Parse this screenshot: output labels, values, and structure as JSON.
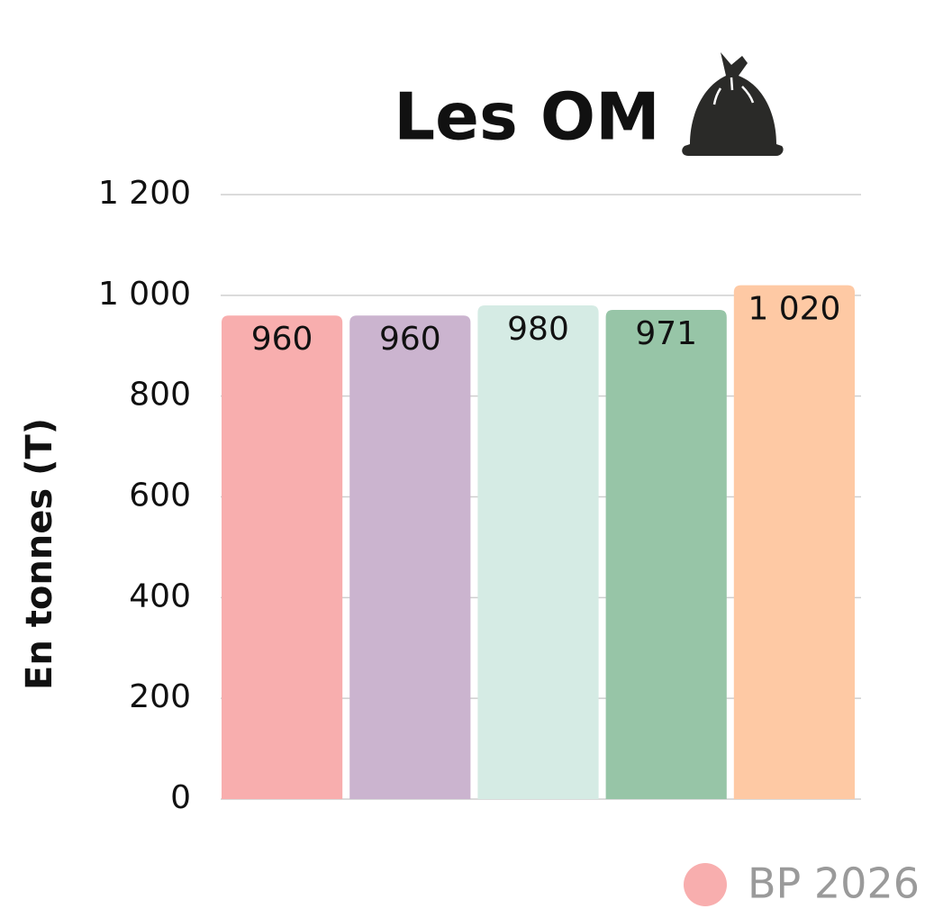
{
  "chart_data": {
    "type": "bar",
    "title": "Les OM",
    "y_label": "En tonnes (T)",
    "categories": [
      null,
      null,
      null,
      null,
      null
    ],
    "values": [
      960,
      960,
      980,
      971,
      1020
    ],
    "value_labels": [
      "960",
      "960",
      "980",
      "971",
      "1 020"
    ],
    "colors": [
      "#f8aeae",
      "#cbb4cf",
      "#d5ebe4",
      "#97c5a7",
      "#fec9a4"
    ],
    "ylim": [
      0,
      1200
    ],
    "yticks": [
      0,
      200,
      400,
      600,
      800,
      {
        "value": 1000,
        "label": "1 000"
      },
      {
        "value": 1200,
        "label": "1 200"
      }
    ],
    "grid": true,
    "legend": {
      "position": "bottom-right",
      "entries": [
        {
          "name": "BP 2026",
          "color": "#f8aeae"
        }
      ]
    }
  }
}
